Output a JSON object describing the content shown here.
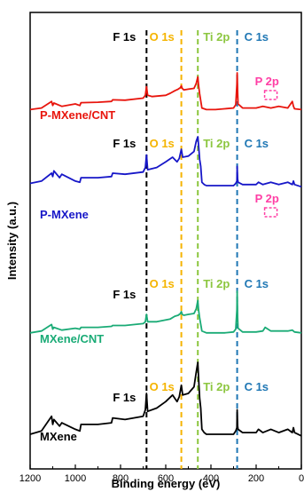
{
  "chart_data": {
    "type": "line",
    "xlabel": "Binding energy (eV)",
    "ylabel": "Intensity (a.u.)",
    "xlim": [
      1200,
      0
    ],
    "x_reversed": true,
    "x_ticks": [
      1200,
      1000,
      800,
      600,
      400,
      200,
      0
    ],
    "y_ticks": "none",
    "grid": false,
    "reference_lines": [
      {
        "label": "F 1s",
        "x": 685,
        "color": "#000000"
      },
      {
        "label": "O 1s",
        "x": 531,
        "color": "#f5b400"
      },
      {
        "label": "Ti 2p",
        "x": 458,
        "color": "#8cc63f"
      },
      {
        "label": "C 1s",
        "x": 284,
        "color": "#1f77b4"
      }
    ],
    "series": [
      {
        "name": "P-MXene/CNT",
        "color": "#e8150d",
        "p2p_label": "P 2p",
        "p2p_color": "#ff3ea5",
        "peak_labels": [
          "F 1s",
          "O 1s",
          "Ti 2p",
          "C 1s",
          "P 2p"
        ],
        "x": [
          1200,
          1150,
          1105,
          1100,
          1095,
          1060,
          1000,
          980,
          975,
          900,
          840,
          835,
          780,
          700,
          690,
          685,
          680,
          660,
          600,
          580,
          560,
          545,
          535,
          531,
          527,
          520,
          500,
          475,
          465,
          458,
          455,
          450,
          440,
          420,
          380,
          340,
          300,
          290,
          285,
          284,
          282,
          280,
          260,
          200,
          170,
          135,
          100,
          60,
          40,
          35,
          30,
          0
        ],
        "y": [
          0.1,
          0.14,
          0.3,
          0.2,
          0.26,
          0.18,
          0.24,
          0.2,
          0.27,
          0.28,
          0.3,
          0.34,
          0.33,
          0.38,
          0.45,
          0.66,
          0.45,
          0.42,
          0.45,
          0.5,
          0.56,
          0.6,
          0.64,
          0.68,
          0.62,
          0.58,
          0.6,
          0.62,
          0.74,
          0.9,
          0.7,
          0.48,
          0.14,
          0.1,
          0.1,
          0.12,
          0.14,
          0.22,
          0.72,
          1.0,
          0.55,
          0.24,
          0.14,
          0.14,
          0.18,
          0.14,
          0.18,
          0.14,
          0.3,
          0.18,
          0.12,
          0.1
        ]
      },
      {
        "name": "P-MXene",
        "color": "#1717c8",
        "p2p_label": "P 2p",
        "p2p_color": "#ff3ea5",
        "peak_labels": [
          "F 1s",
          "O 1s",
          "Ti 2p",
          "C 1s",
          "P 2p"
        ],
        "x": [
          1200,
          1150,
          1105,
          1100,
          1095,
          1070,
          1060,
          1000,
          980,
          975,
          900,
          840,
          835,
          780,
          700,
          690,
          685,
          680,
          640,
          600,
          570,
          560,
          550,
          540,
          531,
          525,
          500,
          475,
          465,
          458,
          455,
          450,
          445,
          440,
          430,
          420,
          380,
          340,
          300,
          290,
          285,
          284,
          282,
          280,
          260,
          200,
          190,
          170,
          135,
          100,
          60,
          40,
          35,
          30,
          0
        ],
        "y": [
          0.18,
          0.22,
          0.36,
          0.3,
          0.4,
          0.28,
          0.34,
          0.22,
          0.2,
          0.28,
          0.28,
          0.3,
          0.36,
          0.34,
          0.38,
          0.46,
          0.68,
          0.42,
          0.46,
          0.56,
          0.64,
          0.6,
          0.56,
          0.62,
          0.78,
          0.64,
          0.66,
          0.74,
          0.92,
          1.0,
          0.86,
          0.6,
          0.48,
          0.2,
          0.16,
          0.14,
          0.14,
          0.14,
          0.14,
          0.18,
          0.22,
          0.48,
          0.26,
          0.2,
          0.16,
          0.16,
          0.2,
          0.16,
          0.2,
          0.16,
          0.2,
          0.16,
          0.22,
          0.16,
          0.12
        ]
      },
      {
        "name": "MXene/CNT",
        "color": "#1aab76",
        "peak_labels": [
          "F 1s",
          "O 1s",
          "Ti 2p",
          "C 1s"
        ],
        "x": [
          1200,
          1150,
          1105,
          1100,
          1095,
          1060,
          1000,
          980,
          975,
          900,
          840,
          835,
          780,
          700,
          690,
          685,
          680,
          640,
          600,
          580,
          560,
          545,
          535,
          531,
          527,
          520,
          500,
          475,
          465,
          458,
          455,
          450,
          440,
          420,
          380,
          340,
          300,
          290,
          285,
          284,
          282,
          280,
          260,
          200,
          170,
          160,
          135,
          100,
          60,
          40,
          30,
          0
        ],
        "y": [
          0.1,
          0.14,
          0.28,
          0.18,
          0.22,
          0.16,
          0.2,
          0.18,
          0.22,
          0.22,
          0.24,
          0.26,
          0.26,
          0.3,
          0.34,
          0.5,
          0.34,
          0.34,
          0.38,
          0.4,
          0.46,
          0.48,
          0.52,
          0.56,
          0.5,
          0.48,
          0.5,
          0.52,
          0.62,
          0.8,
          0.6,
          0.42,
          0.14,
          0.1,
          0.1,
          0.1,
          0.12,
          0.18,
          0.6,
          1.0,
          0.44,
          0.2,
          0.12,
          0.12,
          0.14,
          0.22,
          0.14,
          0.14,
          0.14,
          0.16,
          0.12,
          0.1
        ]
      },
      {
        "name": "MXene",
        "color": "#000000",
        "peak_labels": [
          "F 1s",
          "O 1s",
          "Ti 2p",
          "C 1s"
        ],
        "x": [
          1200,
          1150,
          1105,
          1100,
          1095,
          1070,
          1060,
          1000,
          980,
          975,
          900,
          840,
          835,
          780,
          700,
          690,
          685,
          680,
          640,
          600,
          570,
          560,
          550,
          540,
          531,
          525,
          500,
          475,
          465,
          458,
          455,
          450,
          445,
          440,
          430,
          420,
          380,
          340,
          300,
          290,
          285,
          284,
          282,
          280,
          260,
          200,
          190,
          170,
          135,
          100,
          60,
          40,
          35,
          30,
          0
        ],
        "y": [
          0.12,
          0.16,
          0.34,
          0.24,
          0.3,
          0.22,
          0.26,
          0.18,
          0.16,
          0.24,
          0.24,
          0.26,
          0.32,
          0.3,
          0.34,
          0.42,
          0.62,
          0.4,
          0.44,
          0.52,
          0.6,
          0.56,
          0.52,
          0.58,
          0.72,
          0.6,
          0.62,
          0.7,
          0.88,
          1.0,
          0.82,
          0.56,
          0.44,
          0.18,
          0.14,
          0.12,
          0.12,
          0.12,
          0.12,
          0.16,
          0.2,
          0.42,
          0.22,
          0.18,
          0.14,
          0.14,
          0.18,
          0.14,
          0.18,
          0.14,
          0.18,
          0.14,
          0.2,
          0.14,
          0.1
        ]
      }
    ]
  }
}
